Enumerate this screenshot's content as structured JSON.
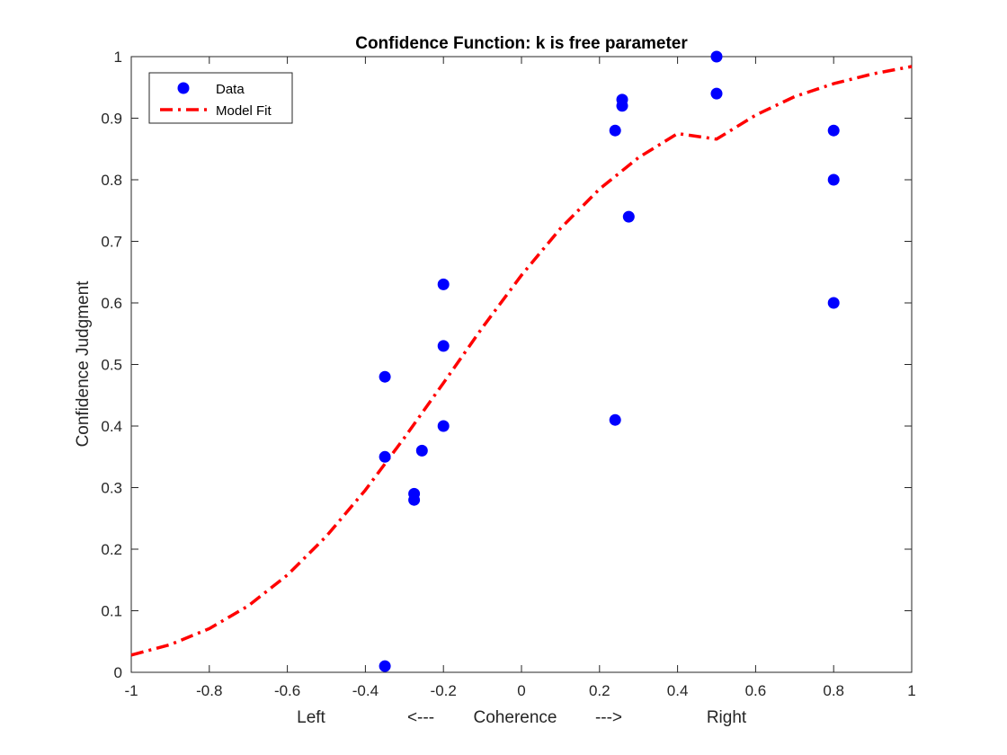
{
  "chart_data": {
    "type": "scatter",
    "title": "Confidence Function: k is free parameter",
    "xlabel": "Left          <---     Coherence     --->            Right",
    "xlabel_parts": [
      "Left",
      "<---",
      "Coherence",
      "--->",
      "Right"
    ],
    "ylabel": "Confidence Judgment",
    "xlim": [
      -1,
      1
    ],
    "ylim": [
      0,
      1
    ],
    "xticks": [
      -1,
      -0.8,
      -0.6,
      -0.4,
      -0.2,
      0,
      0.2,
      0.4,
      0.6,
      0.8,
      1
    ],
    "xtick_labels": [
      "-1",
      "-0.8",
      "-0.6",
      "-0.4",
      "-0.2",
      "0",
      "0.2",
      "0.4",
      "0.6",
      "0.8",
      "1"
    ],
    "yticks": [
      0,
      0.1,
      0.2,
      0.3,
      0.4,
      0.5,
      0.6,
      0.7,
      0.8,
      0.9,
      1
    ],
    "ytick_labels": [
      "0",
      "0.1",
      "0.2",
      "0.3",
      "0.4",
      "0.5",
      "0.6",
      "0.7",
      "0.8",
      "0.9",
      "1"
    ],
    "grid": false,
    "legend_position": "top-left",
    "series": [
      {
        "name": "Data",
        "kind": "points",
        "color": "#0000ff",
        "marker": "filled-circle",
        "x": [
          -0.35,
          -0.35,
          -0.35,
          -0.275,
          -0.275,
          -0.255,
          -0.2,
          -0.2,
          -0.2,
          0.24,
          0.24,
          0.258,
          0.258,
          0.275,
          0.5,
          0.5,
          0.8,
          0.8,
          0.8
        ],
        "y": [
          0.01,
          0.35,
          0.48,
          0.28,
          0.29,
          0.36,
          0.4,
          0.53,
          0.63,
          0.41,
          0.88,
          0.92,
          0.93,
          0.74,
          0.94,
          1.0,
          0.6,
          0.8,
          0.88
        ]
      },
      {
        "name": "Model Fit",
        "kind": "line",
        "color": "#ff0000",
        "line_style": "dash-dot",
        "x": [
          -1,
          -0.9,
          -0.8,
          -0.7,
          -0.6,
          -0.5,
          -0.4,
          -0.3,
          -0.2,
          -0.1,
          0,
          0.1,
          0.2,
          0.3,
          0.4,
          0.5,
          0.6,
          0.7,
          0.8,
          0.9,
          1
        ],
        "y": [
          0.028,
          0.045,
          0.071,
          0.108,
          0.158,
          0.221,
          0.296,
          0.381,
          0.47,
          0.56,
          0.645,
          0.721,
          0.785,
          0.836,
          0.875,
          0.866,
          0.905,
          0.935,
          0.956,
          0.972,
          0.984
        ]
      }
    ]
  }
}
